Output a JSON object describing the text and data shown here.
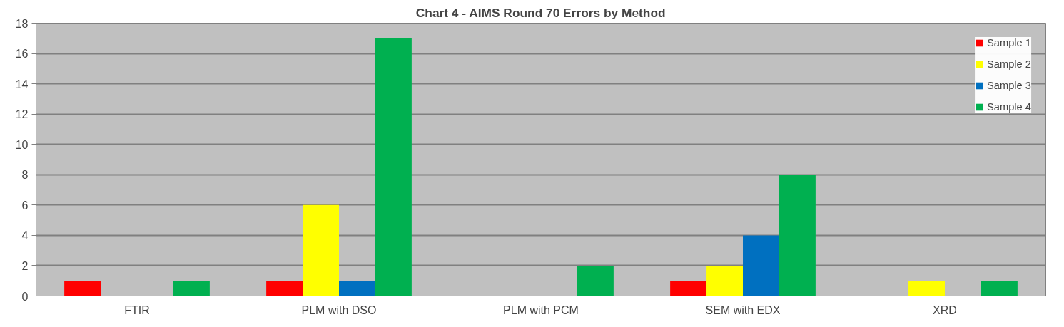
{
  "chart_data": {
    "type": "bar",
    "title": "Chart 4 - AIMS Round 70 Errors by Method",
    "categories": [
      "FTIR",
      "PLM with DSO",
      "PLM with PCM",
      "SEM with EDX",
      "XRD"
    ],
    "series": [
      {
        "name": "Sample 1",
        "color": "#ff0000",
        "values": [
          1,
          1,
          0,
          1,
          0
        ]
      },
      {
        "name": "Sample 2",
        "color": "#ffff00",
        "values": [
          0,
          6,
          0,
          2,
          1
        ]
      },
      {
        "name": "Sample 3",
        "color": "#0070c0",
        "values": [
          0,
          1,
          0,
          4,
          0
        ]
      },
      {
        "name": "Sample 4",
        "color": "#00b050",
        "values": [
          1,
          17,
          2,
          8,
          1
        ]
      }
    ],
    "ylim": [
      0,
      18
    ],
    "yticks": [
      0,
      2,
      4,
      6,
      8,
      10,
      12,
      14,
      16,
      18
    ],
    "grid": "y",
    "legend": "top right"
  }
}
